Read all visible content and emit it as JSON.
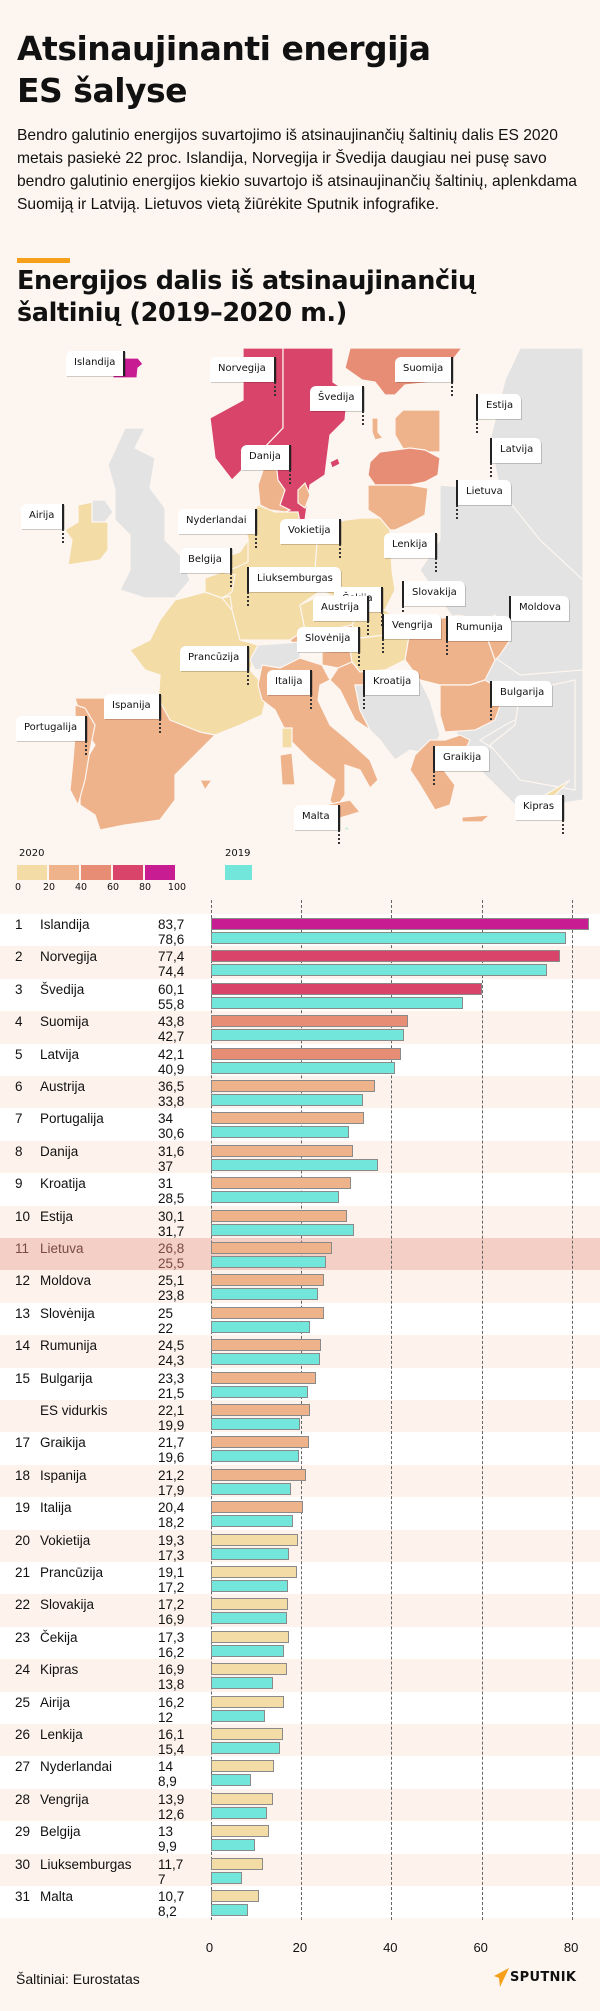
{
  "header": {
    "title_line1": "Atsinaujinanti energija",
    "title_line2": "ES šalyse",
    "intro": "Bendro galutinio energijos suvartojimo iš atsinaujinančių šaltinių dalis ES 2020 metais pasiekė 22 proc. Islandija, Norvegija ir Švedija daugiau nei pusę savo bendro galutinio energijos kiekio suvartojo iš atsinaujinančių šaltinių, aplenkdama Suomiją ir Latviją. Lietuvos vietą žiūrėkite Sputnik infografike.",
    "subtitle_line1": "Energijos dalis iš atsinaujinančių",
    "subtitle_line2": "šaltinių (2019–2020 m.)",
    "accent_color": "#f59f1a"
  },
  "map": {
    "labels": [
      "Islandija",
      "Norvegija",
      "Švedija",
      "Suomija",
      "Estija",
      "Latvija",
      "Lietuva",
      "Danija",
      "Airija",
      "Nyderlandai",
      "Belgija",
      "Vokietija",
      "Lenkija",
      "Liuksemburgas",
      "Čekija",
      "Slovakija",
      "Austrija",
      "Moldova",
      "Vengrija",
      "Rumunija",
      "Slovėnija",
      "Prancūzija",
      "Italija",
      "Kroatija",
      "Bulgarija",
      "Ispanija",
      "Portugalija",
      "Graikija",
      "Malta",
      "Kipras"
    ],
    "colors": {
      "c0_20": "#f4dca7",
      "c20_40": "#efb38c",
      "c40_60": "#e78d75",
      "c60_80": "#d8446a",
      "c80_100": "#c81c92",
      "no_data": "#e3e3e3"
    }
  },
  "legend": {
    "year2020": "2020",
    "year2019": "2019",
    "ticks": [
      "0",
      "20",
      "40",
      "60",
      "80",
      "100"
    ],
    "color2019": "#72e6da"
  },
  "chart_data": {
    "type": "bar",
    "orientation": "horizontal",
    "title": "Energijos dalis iš atsinaujinančių šaltinių (2019–2020 m.)",
    "xlim": [
      0,
      85
    ],
    "x_ticks": [
      "0",
      "20",
      "40",
      "60",
      "80"
    ],
    "grid": true,
    "highlight": "Lietuva",
    "rows": [
      {
        "rank": "1",
        "name": "Islandija",
        "v2020": 83.7,
        "v2019": 78.6,
        "t2020": "83,7",
        "t2019": "78,6"
      },
      {
        "rank": "2",
        "name": "Norvegija",
        "v2020": 77.4,
        "v2019": 74.4,
        "t2020": "77,4",
        "t2019": "74,4"
      },
      {
        "rank": "3",
        "name": "Švedija",
        "v2020": 60.1,
        "v2019": 55.8,
        "t2020": "60,1",
        "t2019": "55,8"
      },
      {
        "rank": "4",
        "name": "Suomija",
        "v2020": 43.8,
        "v2019": 42.7,
        "t2020": "43,8",
        "t2019": "42,7"
      },
      {
        "rank": "5",
        "name": "Latvija",
        "v2020": 42.1,
        "v2019": 40.9,
        "t2020": "42,1",
        "t2019": "40,9"
      },
      {
        "rank": "6",
        "name": "Austrija",
        "v2020": 36.5,
        "v2019": 33.8,
        "t2020": "36,5",
        "t2019": "33,8"
      },
      {
        "rank": "7",
        "name": "Portugalija",
        "v2020": 34,
        "v2019": 30.6,
        "t2020": "34",
        "t2019": "30,6"
      },
      {
        "rank": "8",
        "name": "Danija",
        "v2020": 31.6,
        "v2019": 37,
        "t2020": "31,6",
        "t2019": "37"
      },
      {
        "rank": "9",
        "name": "Kroatija",
        "v2020": 31,
        "v2019": 28.5,
        "t2020": "31",
        "t2019": "28,5"
      },
      {
        "rank": "10",
        "name": "Estija",
        "v2020": 30.1,
        "v2019": 31.7,
        "t2020": "30,1",
        "t2019": "31,7"
      },
      {
        "rank": "11",
        "name": "Lietuva",
        "v2020": 26.8,
        "v2019": 25.5,
        "t2020": "26,8",
        "t2019": "25,5"
      },
      {
        "rank": "12",
        "name": "Moldova",
        "v2020": 25.1,
        "v2019": 23.8,
        "t2020": "25,1",
        "t2019": "23,8"
      },
      {
        "rank": "13",
        "name": "Slovėnija",
        "v2020": 25,
        "v2019": 22,
        "t2020": "25",
        "t2019": "22"
      },
      {
        "rank": "14",
        "name": "Rumunija",
        "v2020": 24.5,
        "v2019": 24.3,
        "t2020": "24,5",
        "t2019": "24,3"
      },
      {
        "rank": "15",
        "name": "Bulgarija",
        "v2020": 23.3,
        "v2019": 21.5,
        "t2020": "23,3",
        "t2019": "21,5"
      },
      {
        "rank": "",
        "name": "ES vidurkis",
        "v2020": 22.1,
        "v2019": 19.9,
        "t2020": "22,1",
        "t2019": "19,9"
      },
      {
        "rank": "17",
        "name": "Graikija",
        "v2020": 21.7,
        "v2019": 19.6,
        "t2020": "21,7",
        "t2019": "19,6"
      },
      {
        "rank": "18",
        "name": "Ispanija",
        "v2020": 21.2,
        "v2019": 17.9,
        "t2020": "21,2",
        "t2019": "17,9"
      },
      {
        "rank": "19",
        "name": "Italija",
        "v2020": 20.4,
        "v2019": 18.2,
        "t2020": "20,4",
        "t2019": "18,2"
      },
      {
        "rank": "20",
        "name": "Vokietija",
        "v2020": 19.3,
        "v2019": 17.3,
        "t2020": "19,3",
        "t2019": "17,3"
      },
      {
        "rank": "21",
        "name": "Prancūzija",
        "v2020": 19.1,
        "v2019": 17.2,
        "t2020": "19,1",
        "t2019": "17,2"
      },
      {
        "rank": "22",
        "name": "Slovakija",
        "v2020": 17.2,
        "v2019": 16.9,
        "t2020": "17,2",
        "t2019": "16,9"
      },
      {
        "rank": "23",
        "name": "Čekija",
        "v2020": 17.3,
        "v2019": 16.2,
        "t2020": "17,3",
        "t2019": "16,2"
      },
      {
        "rank": "24",
        "name": "Kipras",
        "v2020": 16.9,
        "v2019": 13.8,
        "t2020": "16,9",
        "t2019": "13,8"
      },
      {
        "rank": "25",
        "name": "Airija",
        "v2020": 16.2,
        "v2019": 12,
        "t2020": "16,2",
        "t2019": "12"
      },
      {
        "rank": "26",
        "name": "Lenkija",
        "v2020": 16.1,
        "v2019": 15.4,
        "t2020": "16,1",
        "t2019": "15,4"
      },
      {
        "rank": "27",
        "name": "Nyderlandai",
        "v2020": 14,
        "v2019": 8.9,
        "t2020": "14",
        "t2019": "8,9"
      },
      {
        "rank": "28",
        "name": "Vengrija",
        "v2020": 13.9,
        "v2019": 12.6,
        "t2020": "13,9",
        "t2019": "12,6"
      },
      {
        "rank": "29",
        "name": "Belgija",
        "v2020": 13,
        "v2019": 9.9,
        "t2020": "13",
        "t2019": "9,9"
      },
      {
        "rank": "30",
        "name": "Liuksemburgas",
        "v2020": 11.7,
        "v2019": 7,
        "t2020": "11,7",
        "t2019": "7"
      },
      {
        "rank": "31",
        "name": "Malta",
        "v2020": 10.7,
        "v2019": 8.2,
        "t2020": "10,7",
        "t2019": "8,2"
      }
    ]
  },
  "footer": {
    "source": "Šaltiniai: Eurostatas",
    "logo_text": "SPUTNIK"
  }
}
